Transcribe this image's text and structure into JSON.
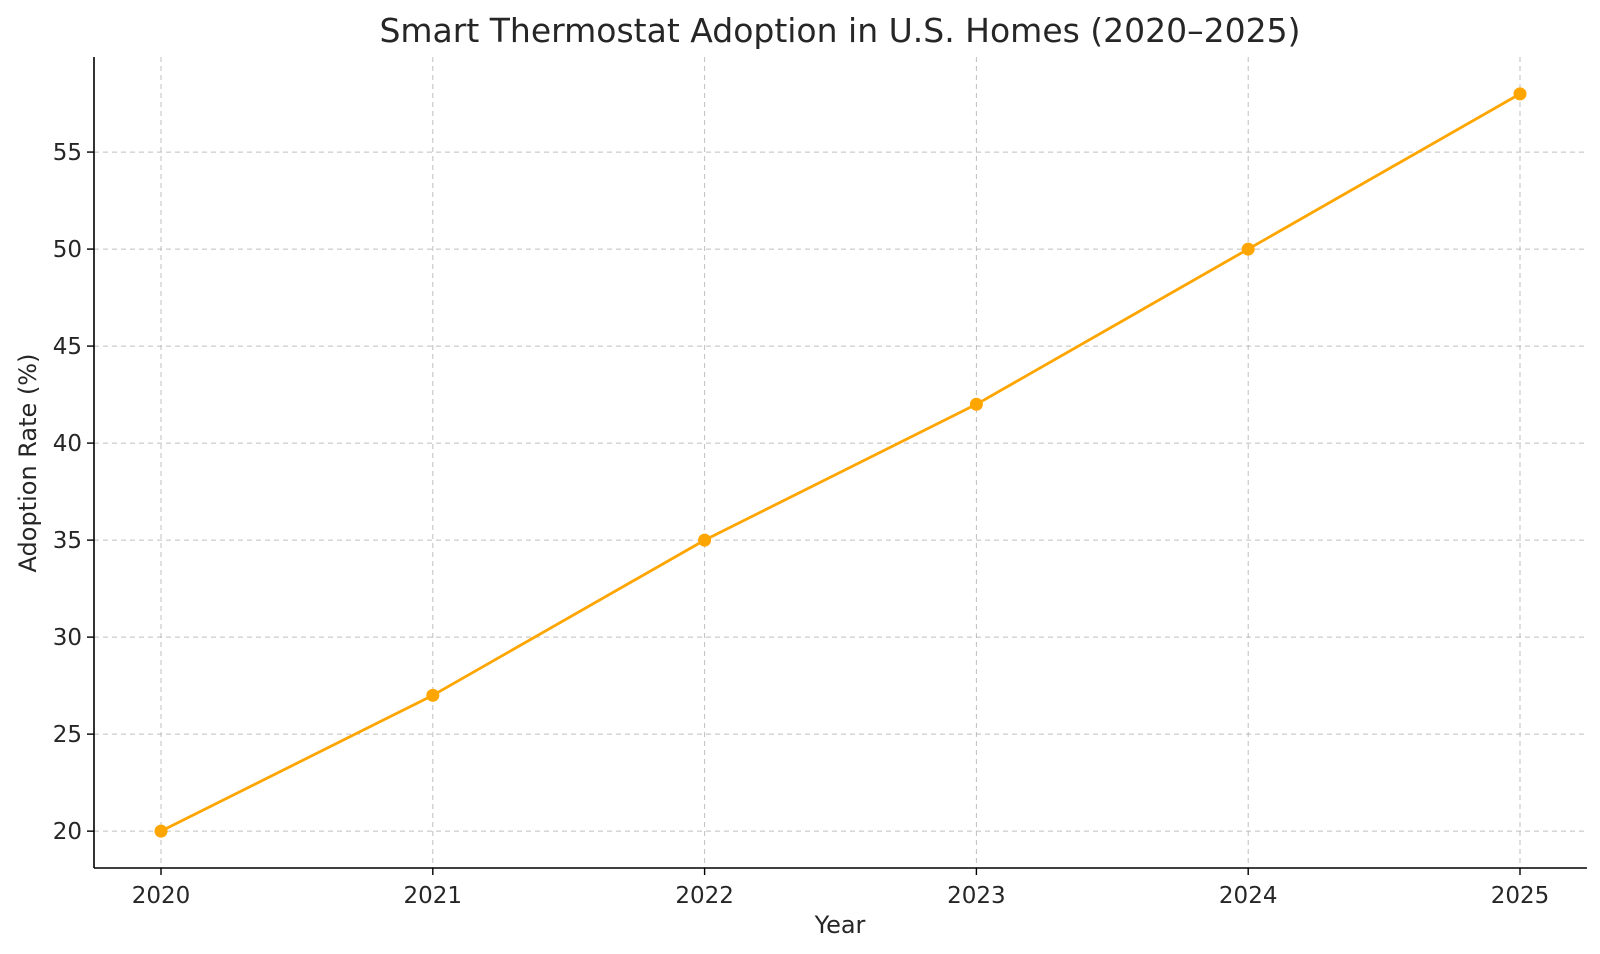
{
  "chart_data": {
    "type": "line",
    "title": "Smart Thermostat Adoption in U.S. Homes (2020–2025)",
    "xlabel": "Year",
    "ylabel": "Adoption Rate (%)",
    "x": [
      "2020",
      "2021",
      "2022",
      "2023",
      "2024",
      "2025"
    ],
    "series": [
      {
        "values": [
          20,
          27,
          35,
          42,
          50,
          58
        ],
        "color": "#FFA500",
        "marker": "circle"
      }
    ],
    "y_ticks": [
      20,
      25,
      30,
      35,
      40,
      45,
      50,
      55
    ],
    "ylim": [
      18.1,
      59.9
    ],
    "grid": true,
    "legend": "none"
  }
}
